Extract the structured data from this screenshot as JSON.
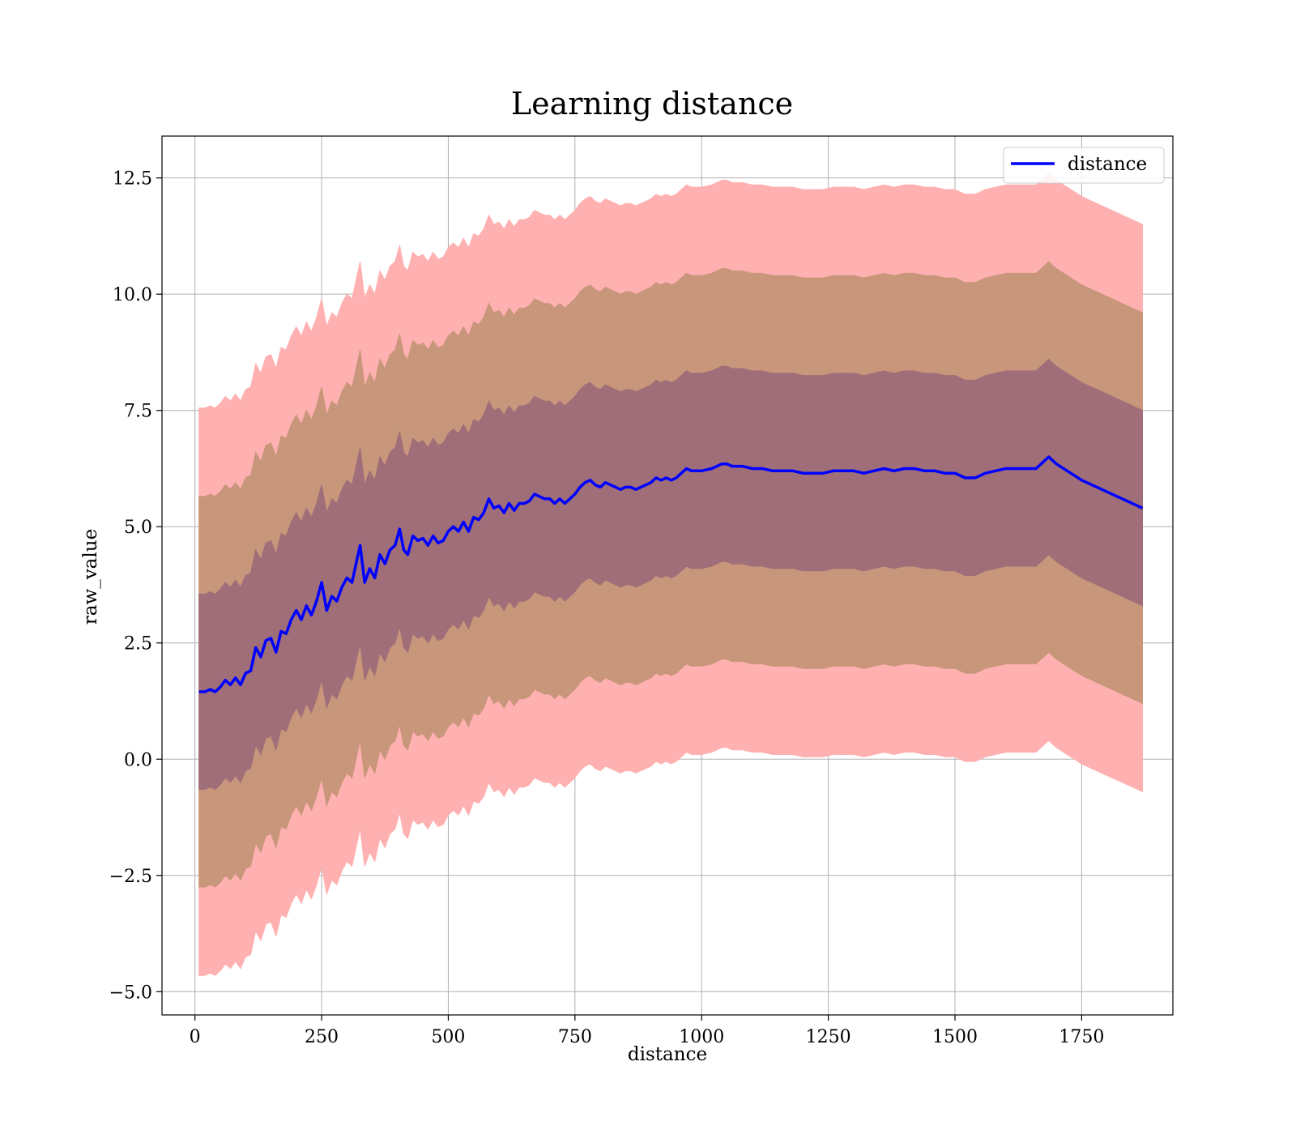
{
  "chart_data": {
    "type": "line",
    "title": "Learning distance",
    "xlabel": "distance",
    "ylabel": "raw_value",
    "xlim": [
      -65,
      1930
    ],
    "ylim": [
      -5.5,
      13.4
    ],
    "x_ticks": [
      0,
      250,
      500,
      750,
      1000,
      1250,
      1500,
      1750
    ],
    "x_tick_labels": [
      "0",
      "250",
      "500",
      "750",
      "1000",
      "1250",
      "1500",
      "1750"
    ],
    "y_ticks": [
      -5.0,
      -2.5,
      0.0,
      2.5,
      5.0,
      7.5,
      10.0,
      12.5
    ],
    "y_tick_labels": [
      "−5.0",
      "−2.5",
      "0.0",
      "2.5",
      "5.0",
      "7.5",
      "10.0",
      "12.5"
    ],
    "grid": true,
    "legend_position": "top-right",
    "band_half_widths": [
      2.1,
      4.2,
      6.1
    ],
    "band_colors": [
      "#a06e78",
      "#c8967a",
      "#ffb0b0"
    ],
    "series": [
      {
        "name": "distance",
        "color": "#0000ff",
        "x": [
          8,
          20,
          30,
          40,
          50,
          60,
          70,
          80,
          90,
          100,
          110,
          120,
          130,
          140,
          150,
          160,
          170,
          180,
          190,
          200,
          210,
          220,
          230,
          240,
          250,
          260,
          270,
          280,
          290,
          300,
          310,
          320,
          326,
          335,
          345,
          355,
          365,
          375,
          385,
          395,
          404,
          412,
          420,
          430,
          440,
          450,
          460,
          470,
          480,
          490,
          500,
          510,
          520,
          530,
          540,
          550,
          560,
          570,
          580,
          590,
          600,
          610,
          620,
          630,
          640,
          650,
          660,
          670,
          680,
          690,
          700,
          710,
          720,
          730,
          740,
          750,
          760,
          770,
          780,
          790,
          800,
          810,
          820,
          830,
          840,
          850,
          860,
          870,
          880,
          890,
          900,
          910,
          920,
          930,
          940,
          950,
          960,
          970,
          980,
          990,
          1000,
          1020,
          1040,
          1050,
          1060,
          1080,
          1100,
          1120,
          1140,
          1160,
          1180,
          1200,
          1220,
          1240,
          1260,
          1280,
          1300,
          1320,
          1340,
          1360,
          1380,
          1400,
          1420,
          1440,
          1460,
          1480,
          1500,
          1520,
          1540,
          1560,
          1580,
          1600,
          1620,
          1640,
          1660,
          1685,
          1700,
          1750,
          1800,
          1870
        ],
        "values": [
          1.45,
          1.45,
          1.5,
          1.45,
          1.55,
          1.7,
          1.6,
          1.75,
          1.6,
          1.85,
          1.9,
          2.4,
          2.2,
          2.55,
          2.6,
          2.3,
          2.75,
          2.7,
          3.0,
          3.2,
          3.0,
          3.3,
          3.1,
          3.4,
          3.8,
          3.2,
          3.5,
          3.4,
          3.7,
          3.9,
          3.8,
          4.3,
          4.6,
          3.8,
          4.1,
          3.9,
          4.4,
          4.2,
          4.5,
          4.6,
          4.95,
          4.5,
          4.4,
          4.8,
          4.7,
          4.75,
          4.6,
          4.8,
          4.65,
          4.7,
          4.9,
          5.0,
          4.9,
          5.1,
          4.9,
          5.2,
          5.15,
          5.3,
          5.6,
          5.4,
          5.45,
          5.3,
          5.5,
          5.35,
          5.5,
          5.5,
          5.55,
          5.7,
          5.65,
          5.6,
          5.6,
          5.5,
          5.6,
          5.5,
          5.6,
          5.7,
          5.85,
          5.95,
          6.0,
          5.9,
          5.85,
          5.95,
          5.9,
          5.85,
          5.8,
          5.85,
          5.85,
          5.8,
          5.85,
          5.9,
          5.95,
          6.05,
          6.0,
          6.05,
          6.0,
          6.05,
          6.15,
          6.25,
          6.2,
          6.2,
          6.2,
          6.25,
          6.35,
          6.35,
          6.3,
          6.3,
          6.25,
          6.25,
          6.2,
          6.2,
          6.2,
          6.15,
          6.15,
          6.15,
          6.2,
          6.2,
          6.2,
          6.15,
          6.2,
          6.25,
          6.2,
          6.25,
          6.25,
          6.2,
          6.2,
          6.15,
          6.15,
          6.05,
          6.05,
          6.15,
          6.2,
          6.25,
          6.25,
          6.25,
          6.25,
          6.5,
          6.35,
          6.0,
          5.75,
          5.4
        ]
      }
    ]
  }
}
